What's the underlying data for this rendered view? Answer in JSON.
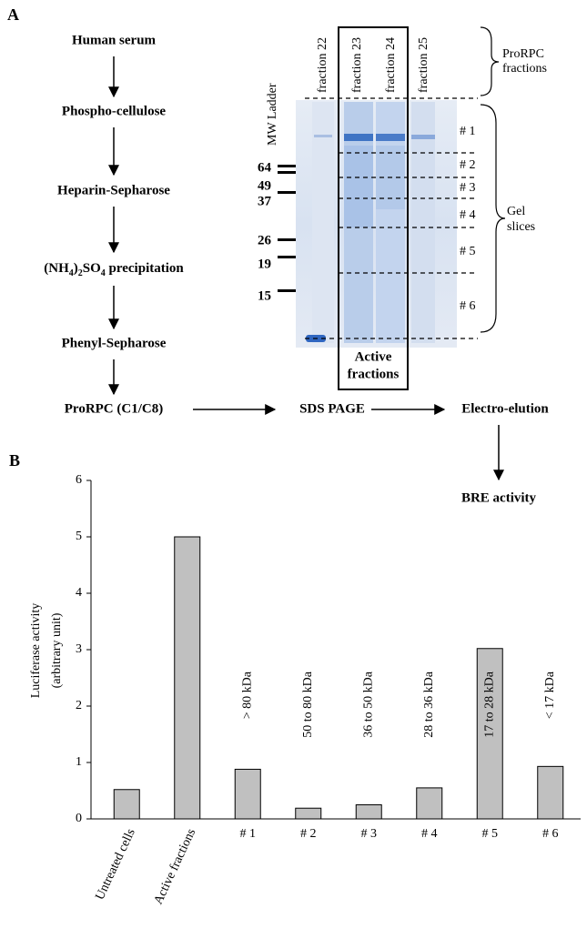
{
  "panel_a": {
    "label": "A",
    "flow_steps": [
      "Human serum",
      "Phospho-cellulose",
      "Heparin-Sepharose",
      [
        "(NH",
        "4",
        ")",
        "2",
        "SO",
        "4",
        " precipitation"
      ],
      "Phenyl-Sepharose",
      "ProRPC (C1/C8)"
    ],
    "next_steps": [
      "SDS PAGE",
      "Electro-elution",
      "BRE activity"
    ],
    "fractions": [
      "fraction 22",
      "fraction 23",
      "fraction 24",
      "fraction 25"
    ],
    "ladder_title": "MW Ladder",
    "mw_markers": [
      "64",
      "49",
      "37",
      "26",
      "19",
      "15"
    ],
    "box_label": [
      "Active",
      "fractions"
    ],
    "slices": [
      "# 1",
      "# 2",
      "# 3",
      "# 4",
      "# 5",
      "# 6"
    ],
    "brace_labels": {
      "top": [
        "ProRPC",
        "fractions"
      ],
      "side": [
        "Gel",
        "slices"
      ]
    }
  },
  "chart_data": {
    "type": "bar",
    "panel_label": "B",
    "y_label": [
      "Luciferase activity",
      "(arbitrary unit)"
    ],
    "categories": [
      "Untreated cells",
      "Active fractions",
      "# 1",
      "# 2",
      "# 3",
      "# 4",
      "# 5",
      "# 6"
    ],
    "values": [
      0.52,
      5,
      0.88,
      0.19,
      0.25,
      0.55,
      3.02,
      0.93
    ],
    "bar_labels": [
      null,
      null,
      "> 80 kDa",
      "50 to 80 kDa",
      "36 to 50 kDa",
      "28 to 36 kDa",
      "17 to 28 kDa",
      "< 17 kDa"
    ],
    "color": "#c0c0c0",
    "ylim": [
      0,
      6
    ],
    "yticks": [
      0,
      1,
      2,
      3,
      4,
      5,
      6
    ],
    "grid": false
  }
}
